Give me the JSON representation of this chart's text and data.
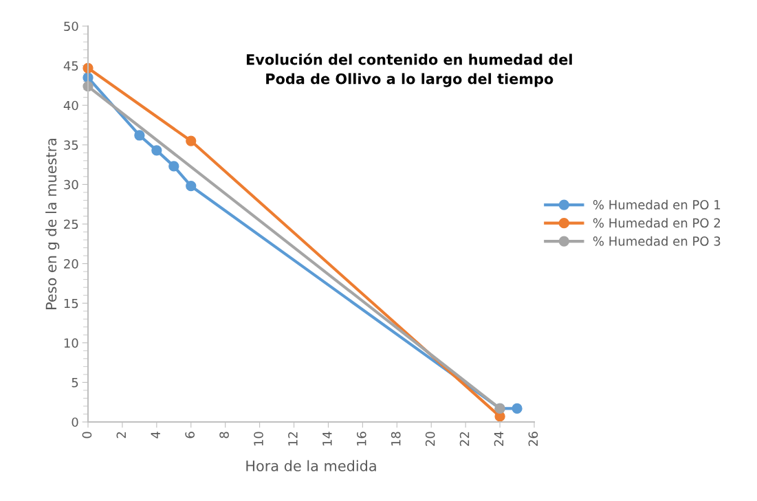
{
  "chart_data": {
    "type": "line",
    "title": "Evolución del contenido en humedad del\nPoda de Ollivo a lo largo del tiempo",
    "xlabel": "Hora de la medida",
    "ylabel": "Peso en g de la muestra",
    "series": [
      {
        "name": "% Humedad en PO 1",
        "color": "#5b9bd5",
        "x": [
          0,
          3,
          4,
          5,
          6,
          24,
          25
        ],
        "values": [
          43.5,
          36.2,
          34.3,
          32.3,
          29.8,
          1.7,
          1.7
        ]
      },
      {
        "name": "% Humedad en PO 2",
        "color": "#ed7d31",
        "x": [
          0,
          6,
          24
        ],
        "values": [
          44.7,
          35.5,
          0.7
        ]
      },
      {
        "name": "% Humedad en PO 3",
        "color": "#a5a5a5",
        "x": [
          0,
          24
        ],
        "values": [
          42.4,
          1.7
        ]
      }
    ],
    "xlim": [
      0,
      26
    ],
    "xticks": [
      0,
      2,
      4,
      6,
      8,
      10,
      12,
      14,
      16,
      18,
      20,
      22,
      24,
      26
    ],
    "ylim": [
      0,
      50
    ],
    "yticks": [
      0,
      5,
      10,
      15,
      20,
      25,
      30,
      35,
      40,
      45,
      50
    ],
    "grid": false,
    "legend": "right",
    "marker": "circle",
    "line_style": "solid"
  }
}
